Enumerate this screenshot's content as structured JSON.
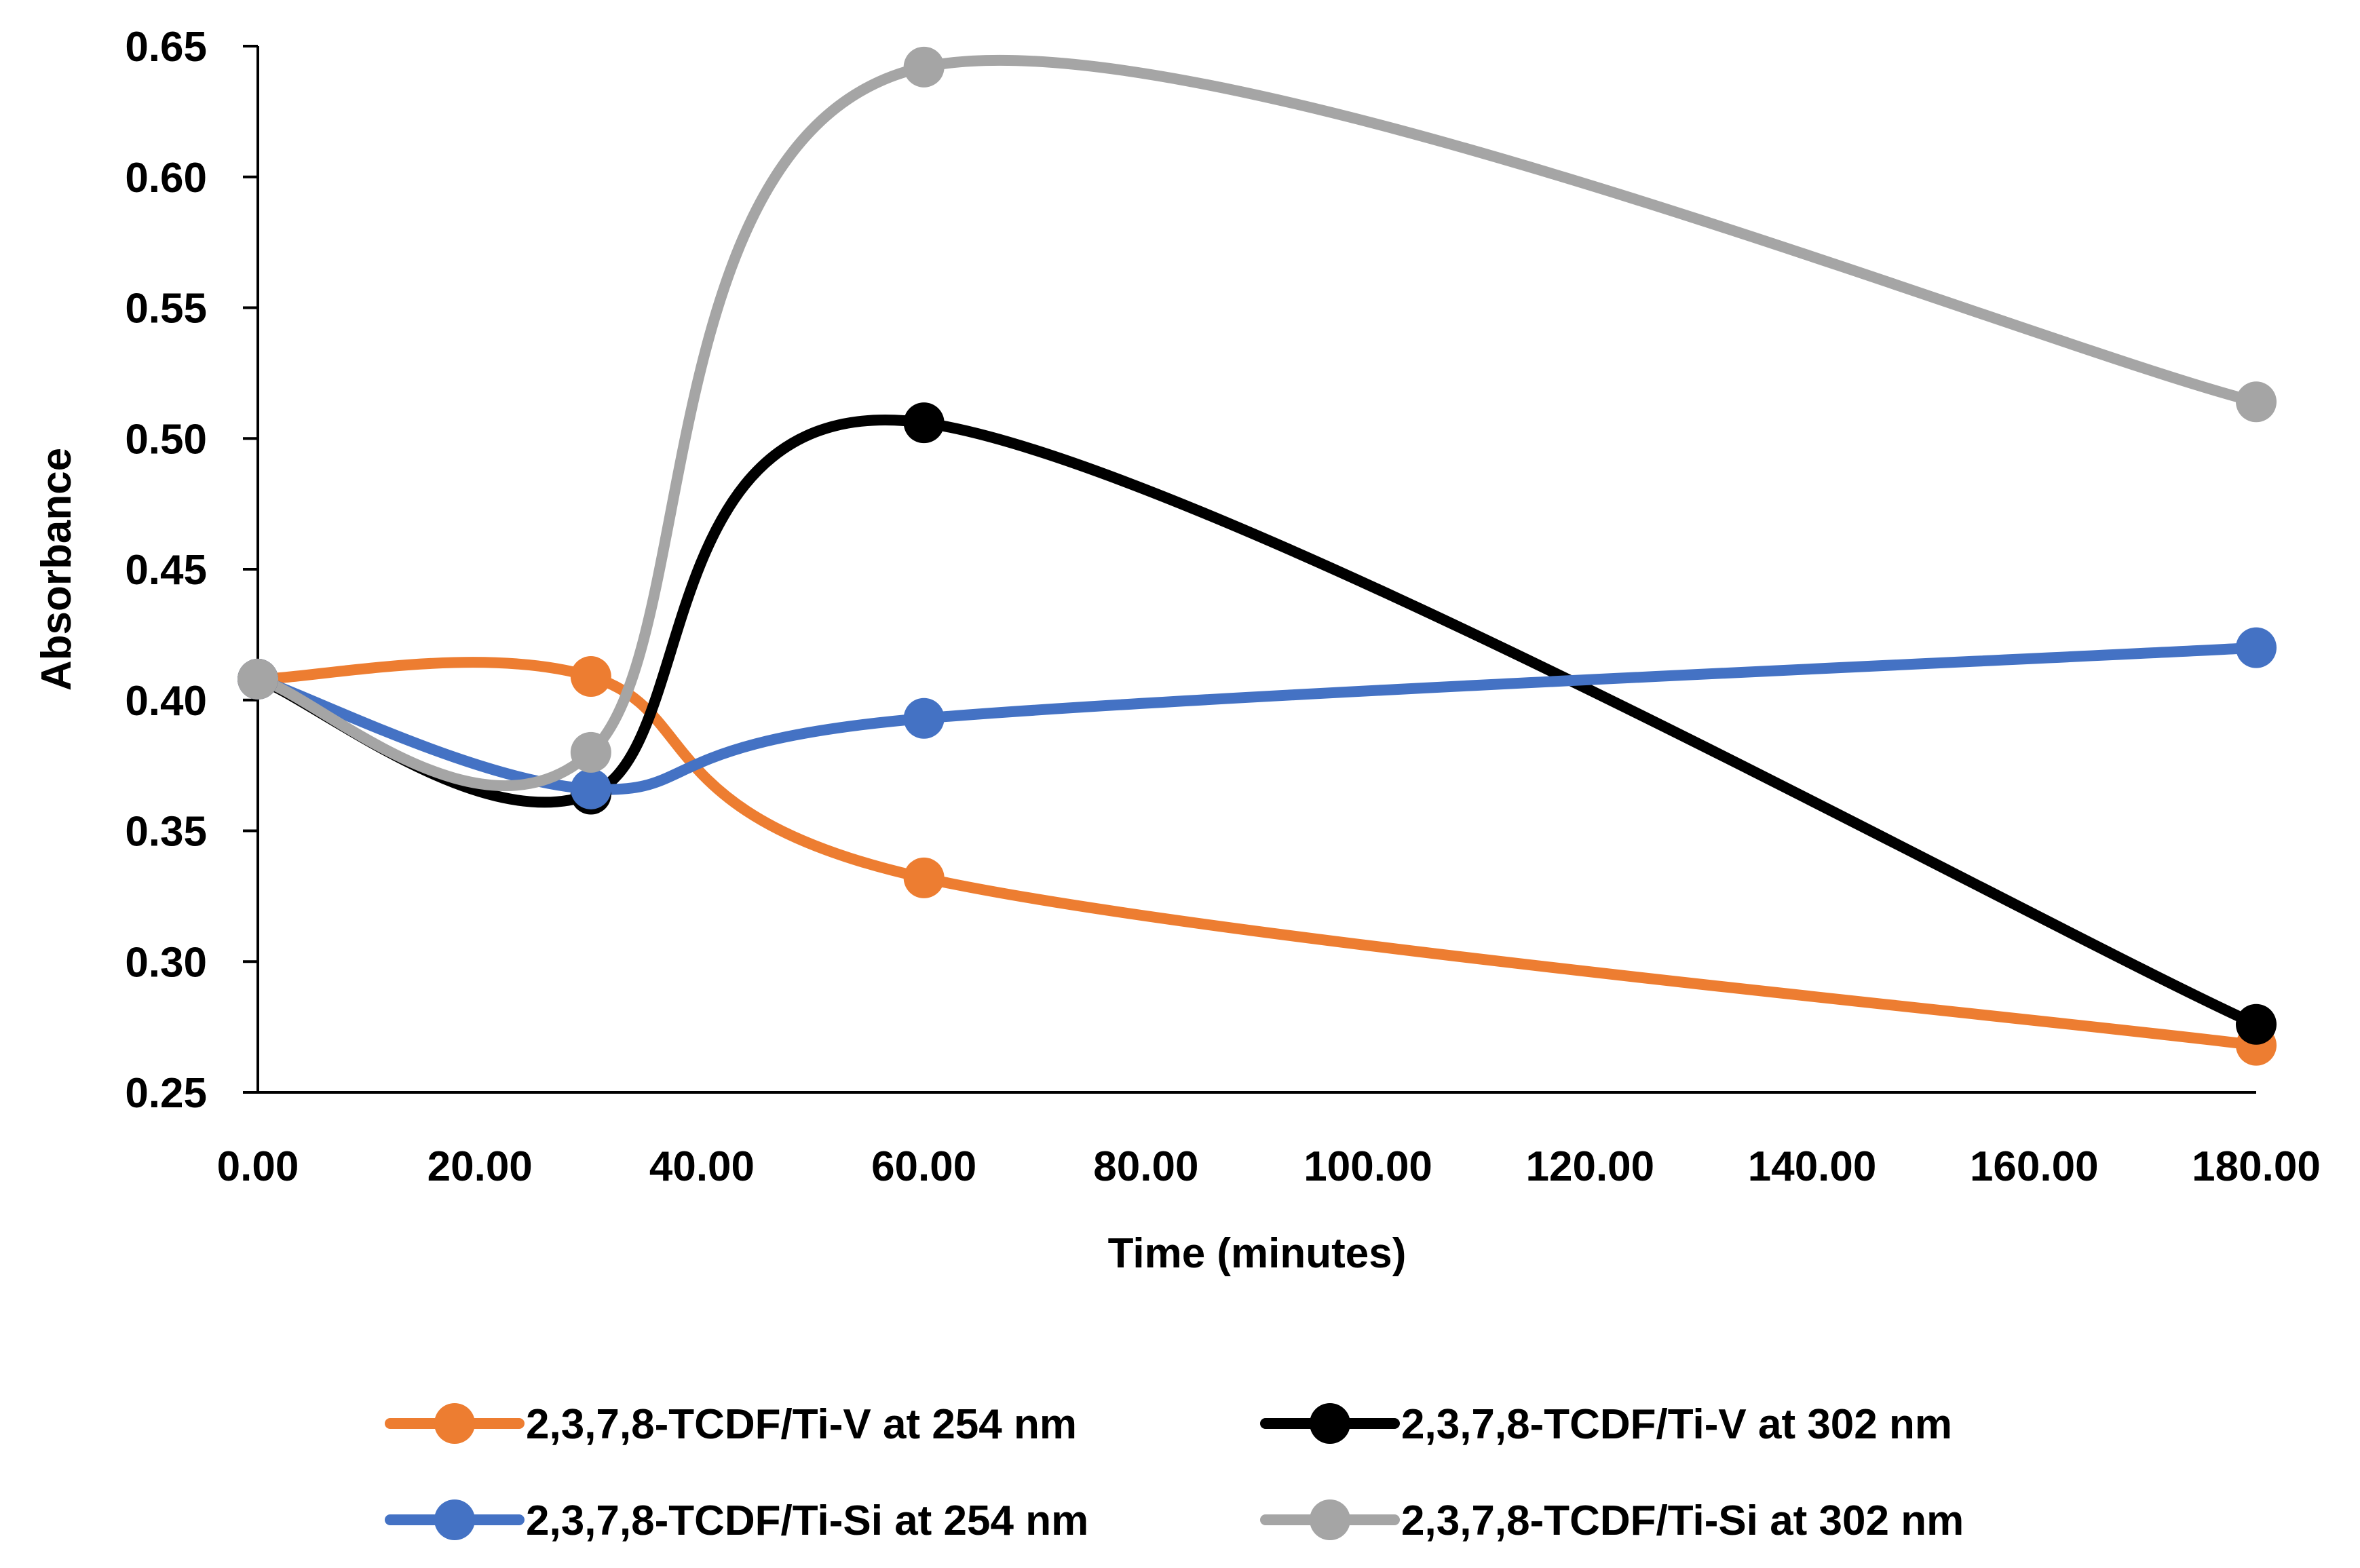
{
  "chart_data": {
    "type": "line",
    "title": "",
    "xlabel": "Time (minutes)",
    "ylabel": "Absorbance",
    "x": [
      0,
      30,
      60,
      180
    ],
    "xlim": [
      0,
      180
    ],
    "ylim": [
      0.25,
      0.65
    ],
    "x_ticks": [
      0,
      20,
      40,
      60,
      80,
      100,
      120,
      140,
      160,
      180
    ],
    "x_tick_labels": [
      "0.00",
      "20.00",
      "40.00",
      "60.00",
      "80.00",
      "100.00",
      "120.00",
      "140.00",
      "160.00",
      "180.00"
    ],
    "y_ticks": [
      0.25,
      0.3,
      0.35,
      0.4,
      0.45,
      0.5,
      0.55,
      0.6,
      0.65
    ],
    "y_tick_labels": [
      "0.25",
      "0.30",
      "0.35",
      "0.40",
      "0.45",
      "0.50",
      "0.55",
      "0.60",
      "0.65"
    ],
    "grid": false,
    "smooth": true,
    "legend_position": "bottom",
    "series": [
      {
        "name": "2,3,7,8-TCDF/Ti-V at 254 nm",
        "color": "#ED7D31",
        "values": [
          0.408,
          0.409,
          0.332,
          0.268
        ]
      },
      {
        "name": "2,3,7,8-TCDF/Ti-V at 302 nm",
        "color": "#000000",
        "values": [
          0.408,
          0.364,
          0.506,
          0.276
        ]
      },
      {
        "name": "2,3,7,8-TCDF/Ti-Si at 254 nm",
        "color": "#4472C4",
        "values": [
          0.408,
          0.366,
          0.393,
          0.42
        ]
      },
      {
        "name": "2,3,7,8-TCDF/Ti-Si at 302 nm",
        "color": "#A5A5A5",
        "values": [
          0.408,
          0.38,
          0.642,
          0.514
        ]
      }
    ]
  }
}
